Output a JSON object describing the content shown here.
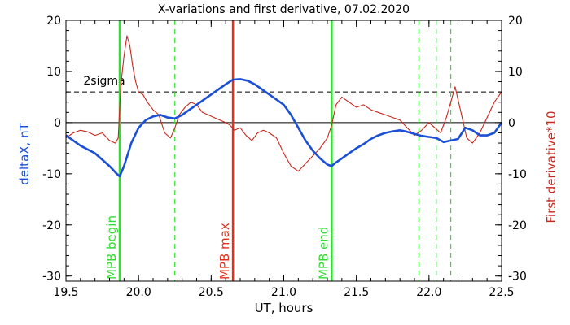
{
  "chart_data": {
    "type": "line",
    "title": "X-variations and first derivative, 07.02.2020",
    "xlabel": "UT, hours",
    "ylabel_left": "deltaX, nT",
    "ylabel_right": "First derivative*10",
    "xlim": [
      19.5,
      22.5
    ],
    "ylim": [
      -31,
      20
    ],
    "xticks": [
      19.5,
      20.0,
      20.5,
      21.0,
      21.5,
      22.0,
      22.5
    ],
    "xtick_labels": [
      "19.5",
      "20.0",
      "20.5",
      "21.0",
      "21.5",
      "22.0",
      "22.5"
    ],
    "yticks": [
      -30,
      -20,
      -10,
      0,
      10,
      20
    ],
    "ytick_labels": [
      "-30",
      "-20",
      "-10",
      "0",
      "10",
      "20"
    ],
    "colors": {
      "deltaX": "#1a4fd6",
      "derivative": "#c8281e",
      "mpb_max": "#e0301e",
      "mpb_edges": "#33dd33"
    },
    "reference_lines": [
      {
        "label": "2sigma",
        "y": 6,
        "style": "dashed"
      },
      {
        "label": "",
        "y": 0,
        "style": "solid"
      }
    ],
    "markers": [
      {
        "label": "MPB begin",
        "x": 19.87,
        "kind": "solid",
        "color": "#33dd33"
      },
      {
        "label": "MPB max",
        "x": 20.65,
        "kind": "solid",
        "color": "#e0301e"
      },
      {
        "label": "MPB end",
        "x": 21.33,
        "kind": "solid",
        "color": "#33dd33"
      },
      {
        "label": "",
        "x": 20.25,
        "kind": "dashed",
        "color": "#33dd33"
      },
      {
        "label": "",
        "x": 21.93,
        "kind": "dashed",
        "color": "#33dd33"
      },
      {
        "label": "",
        "x": 22.05,
        "kind": "dashed",
        "color": "#33dd33"
      },
      {
        "label": "",
        "x": 22.15,
        "kind": "dashed",
        "color": "#33dd33"
      }
    ],
    "series": [
      {
        "axis": "left",
        "color": "#1a4fd6",
        "x": [
          19.5,
          19.6,
          19.7,
          19.8,
          19.85,
          19.87,
          19.9,
          19.95,
          20.0,
          20.05,
          20.1,
          20.15,
          20.2,
          20.25,
          20.3,
          20.35,
          20.4,
          20.45,
          20.5,
          20.55,
          20.6,
          20.65,
          20.7,
          20.75,
          20.8,
          20.85,
          20.9,
          20.95,
          21.0,
          21.05,
          21.1,
          21.15,
          21.2,
          21.25,
          21.3,
          21.33,
          21.35,
          21.4,
          21.45,
          21.5,
          21.55,
          21.6,
          21.65,
          21.7,
          21.75,
          21.8,
          21.85,
          21.9,
          21.95,
          22.0,
          22.05,
          22.1,
          22.15,
          22.2,
          22.25,
          22.3,
          22.35,
          22.4,
          22.45,
          22.5
        ],
        "y": [
          -2.5,
          -4.5,
          -6.0,
          -8.5,
          -10.0,
          -10.5,
          -8.5,
          -4.0,
          -1.0,
          0.5,
          1.2,
          1.5,
          1.0,
          0.8,
          1.5,
          2.5,
          3.5,
          4.5,
          5.5,
          6.5,
          7.5,
          8.4,
          8.5,
          8.2,
          7.5,
          6.5,
          5.5,
          4.5,
          3.5,
          1.5,
          -1.0,
          -3.5,
          -5.5,
          -7.0,
          -8.2,
          -8.5,
          -8.0,
          -7.0,
          -6.0,
          -5.0,
          -4.2,
          -3.2,
          -2.5,
          -2.0,
          -1.7,
          -1.5,
          -1.8,
          -2.2,
          -2.6,
          -2.8,
          -3.0,
          -3.8,
          -3.5,
          -3.2,
          -1.0,
          -1.5,
          -2.5,
          -2.5,
          -2.0,
          0.0
        ]
      },
      {
        "axis": "right",
        "color": "#c8281e",
        "x": [
          19.5,
          19.55,
          19.6,
          19.65,
          19.7,
          19.75,
          19.8,
          19.84,
          19.86,
          19.87,
          19.88,
          19.9,
          19.92,
          19.94,
          19.96,
          19.98,
          20.0,
          20.03,
          20.06,
          20.1,
          20.14,
          20.18,
          20.22,
          20.25,
          20.28,
          20.32,
          20.36,
          20.4,
          20.44,
          20.48,
          20.52,
          20.56,
          20.6,
          20.63,
          20.66,
          20.7,
          20.74,
          20.78,
          20.82,
          20.86,
          20.9,
          20.95,
          21.0,
          21.05,
          21.1,
          21.15,
          21.2,
          21.25,
          21.3,
          21.33,
          21.36,
          21.4,
          21.45,
          21.5,
          21.55,
          21.6,
          21.65,
          21.7,
          21.75,
          21.8,
          21.85,
          21.9,
          21.95,
          22.0,
          22.04,
          22.08,
          22.12,
          22.15,
          22.18,
          22.22,
          22.26,
          22.3,
          22.35,
          22.4,
          22.45,
          22.5
        ],
        "y": [
          -3.0,
          -2.0,
          -1.5,
          -1.8,
          -2.5,
          -2.0,
          -3.5,
          -4.0,
          -3.0,
          3.0,
          8.0,
          13.0,
          17.0,
          15.0,
          11.0,
          8.0,
          6.0,
          5.5,
          4.0,
          2.5,
          1.5,
          -2.0,
          -3.0,
          -1.0,
          1.5,
          3.0,
          4.0,
          3.5,
          2.0,
          1.5,
          1.0,
          0.5,
          0.0,
          -0.5,
          -1.5,
          -1.0,
          -2.5,
          -3.5,
          -2.0,
          -1.5,
          -2.0,
          -3.0,
          -6.0,
          -8.5,
          -9.5,
          -8.0,
          -6.5,
          -5.0,
          -3.0,
          -0.5,
          3.5,
          5.0,
          4.0,
          3.0,
          3.5,
          2.5,
          2.0,
          1.5,
          1.0,
          0.5,
          -1.0,
          -2.5,
          -1.5,
          0.0,
          -1.0,
          -2.0,
          1.0,
          4.0,
          7.0,
          2.0,
          -3.0,
          -4.0,
          -2.0,
          1.0,
          4.0,
          6.0
        ]
      }
    ]
  }
}
